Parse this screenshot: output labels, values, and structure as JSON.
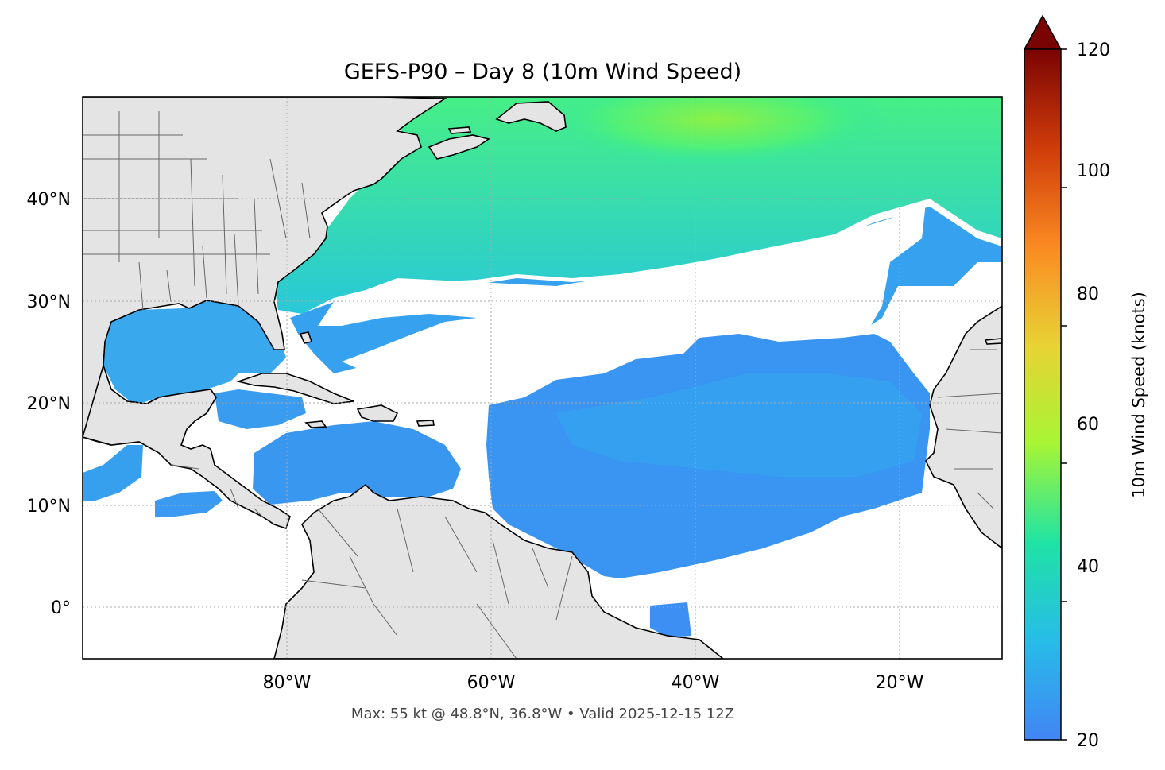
{
  "title": "GEFS-P90 – Day 8 (10m Wind Speed)",
  "footer": "Max: 55 kt @ 48.8°N, 36.8°W • Valid 2025-12-15 12Z",
  "lon_ticks": [
    "80°W",
    "60°W",
    "40°W",
    "20°W"
  ],
  "lat_ticks": [
    "40°N",
    "30°N",
    "20°N",
    "10°N",
    "0°"
  ],
  "colorbar": {
    "label": "10m Wind Speed (knots)",
    "ticks": [
      "120",
      "100",
      "80",
      "60",
      "40",
      "20"
    ],
    "min": 20,
    "max": 120,
    "extend": "max",
    "colormap": [
      "#4285f4",
      "#27bce8",
      "#1fe3a4",
      "#a7f535",
      "#e8d234",
      "#fa8a22",
      "#cf3c0a",
      "#7a0403"
    ]
  },
  "map": {
    "extent": {
      "lon_min": -100,
      "lon_max": -10,
      "lat_min": -5,
      "lat_max": 50
    },
    "land_color": "#e4e4e4",
    "coast_color": "#000000",
    "border_color": "#666666",
    "gridlines": "dotted"
  }
}
